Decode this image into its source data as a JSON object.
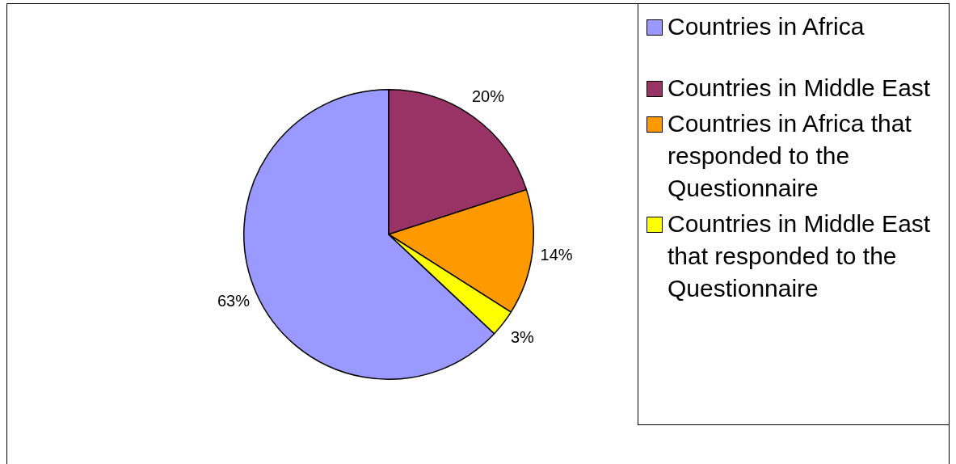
{
  "chart_data": {
    "type": "pie",
    "categories": [
      "Countries in Africa",
      "Countries in Middle East",
      "Countries in Africa that responded to the Questionnaire",
      "Countries in Middle East that responded to the Questionnaire"
    ],
    "values": [
      63,
      20,
      14,
      3
    ],
    "colors": [
      "#9999ff",
      "#993366",
      "#ff9900",
      "#ffff00"
    ],
    "value_labels": [
      "63%",
      "20%",
      "14%",
      "3%"
    ],
    "legend": "right"
  }
}
